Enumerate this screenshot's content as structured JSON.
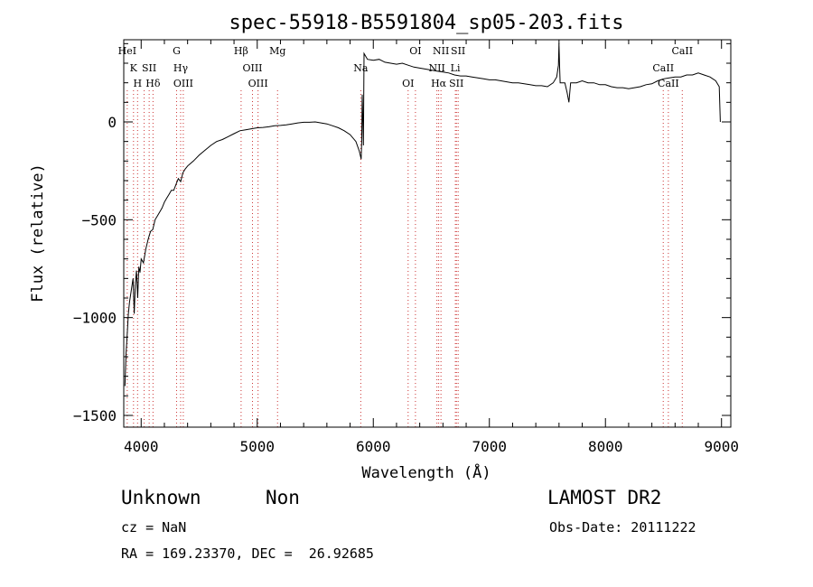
{
  "chart_data": {
    "type": "line",
    "title": "spec-55918-B5591804_sp05-203.fits",
    "xlabel": "Wavelength (Å)",
    "ylabel": "Flux (relative)",
    "xlim": [
      3850,
      9080
    ],
    "ylim": [
      -1560,
      420
    ],
    "xticks": [
      4000,
      5000,
      6000,
      7000,
      8000,
      9000
    ],
    "yticks": [
      0,
      -500,
      -1000,
      -1500
    ],
    "grid": false,
    "series": [
      {
        "values": [
          [
            3860,
            -1350
          ],
          [
            3870,
            -1180
          ],
          [
            3880,
            -1080
          ],
          [
            3890,
            -980
          ],
          [
            3900,
            -920
          ],
          [
            3910,
            -880
          ],
          [
            3920,
            -840
          ],
          [
            3930,
            -800
          ],
          [
            3940,
            -980
          ],
          [
            3950,
            -830
          ],
          [
            3960,
            -760
          ],
          [
            3970,
            -900
          ],
          [
            3980,
            -740
          ],
          [
            3990,
            -770
          ],
          [
            4000,
            -700
          ],
          [
            4020,
            -720
          ],
          [
            4040,
            -650
          ],
          [
            4060,
            -600
          ],
          [
            4080,
            -560
          ],
          [
            4100,
            -550
          ],
          [
            4120,
            -500
          ],
          [
            4140,
            -480
          ],
          [
            4160,
            -460
          ],
          [
            4180,
            -440
          ],
          [
            4200,
            -410
          ],
          [
            4220,
            -390
          ],
          [
            4240,
            -370
          ],
          [
            4260,
            -350
          ],
          [
            4280,
            -350
          ],
          [
            4300,
            -320
          ],
          [
            4320,
            -290
          ],
          [
            4340,
            -305
          ],
          [
            4360,
            -260
          ],
          [
            4380,
            -240
          ],
          [
            4400,
            -225
          ],
          [
            4420,
            -215
          ],
          [
            4450,
            -200
          ],
          [
            4500,
            -170
          ],
          [
            4550,
            -145
          ],
          [
            4600,
            -120
          ],
          [
            4650,
            -100
          ],
          [
            4700,
            -90
          ],
          [
            4750,
            -75
          ],
          [
            4800,
            -60
          ],
          [
            4850,
            -45
          ],
          [
            4900,
            -40
          ],
          [
            4950,
            -35
          ],
          [
            5000,
            -30
          ],
          [
            5050,
            -28
          ],
          [
            5100,
            -25
          ],
          [
            5150,
            -20
          ],
          [
            5200,
            -18
          ],
          [
            5250,
            -15
          ],
          [
            5300,
            -10
          ],
          [
            5350,
            -5
          ],
          [
            5400,
            -2
          ],
          [
            5450,
            -2
          ],
          [
            5500,
            0
          ],
          [
            5550,
            -5
          ],
          [
            5600,
            -10
          ],
          [
            5650,
            -20
          ],
          [
            5700,
            -30
          ],
          [
            5750,
            -45
          ],
          [
            5800,
            -65
          ],
          [
            5850,
            -100
          ],
          [
            5880,
            -150
          ],
          [
            5895,
            -190
          ],
          [
            5900,
            -100
          ],
          [
            5905,
            140
          ],
          [
            5910,
            0
          ],
          [
            5915,
            -120
          ],
          [
            5920,
            350
          ],
          [
            5950,
            320
          ],
          [
            6000,
            315
          ],
          [
            6050,
            320
          ],
          [
            6100,
            305
          ],
          [
            6150,
            300
          ],
          [
            6200,
            295
          ],
          [
            6250,
            300
          ],
          [
            6300,
            290
          ],
          [
            6350,
            280
          ],
          [
            6400,
            275
          ],
          [
            6450,
            270
          ],
          [
            6500,
            265
          ],
          [
            6550,
            260
          ],
          [
            6600,
            255
          ],
          [
            6650,
            250
          ],
          [
            6700,
            240
          ],
          [
            6750,
            235
          ],
          [
            6800,
            235
          ],
          [
            6850,
            230
          ],
          [
            6900,
            225
          ],
          [
            6950,
            220
          ],
          [
            7000,
            215
          ],
          [
            7050,
            215
          ],
          [
            7100,
            210
          ],
          [
            7150,
            205
          ],
          [
            7200,
            200
          ],
          [
            7250,
            200
          ],
          [
            7300,
            195
          ],
          [
            7350,
            190
          ],
          [
            7400,
            185
          ],
          [
            7450,
            185
          ],
          [
            7500,
            180
          ],
          [
            7550,
            200
          ],
          [
            7580,
            230
          ],
          [
            7595,
            290
          ],
          [
            7600,
            400
          ],
          [
            7605,
            280
          ],
          [
            7610,
            200
          ],
          [
            7650,
            200
          ],
          [
            7670,
            150
          ],
          [
            7685,
            100
          ],
          [
            7700,
            200
          ],
          [
            7750,
            200
          ],
          [
            7800,
            210
          ],
          [
            7850,
            200
          ],
          [
            7900,
            200
          ],
          [
            7950,
            190
          ],
          [
            8000,
            190
          ],
          [
            8050,
            180
          ],
          [
            8100,
            175
          ],
          [
            8150,
            175
          ],
          [
            8200,
            170
          ],
          [
            8250,
            175
          ],
          [
            8300,
            180
          ],
          [
            8350,
            190
          ],
          [
            8400,
            195
          ],
          [
            8450,
            210
          ],
          [
            8500,
            220
          ],
          [
            8550,
            225
          ],
          [
            8600,
            230
          ],
          [
            8650,
            230
          ],
          [
            8700,
            240
          ],
          [
            8750,
            240
          ],
          [
            8800,
            250
          ],
          [
            8850,
            240
          ],
          [
            8900,
            230
          ],
          [
            8950,
            210
          ],
          [
            8980,
            180
          ],
          [
            8990,
            0
          ]
        ]
      }
    ],
    "lines": [
      {
        "x": 3880,
        "labels": [
          "HeI"
        ]
      },
      {
        "x": 3934,
        "labels": [
          "K"
        ]
      },
      {
        "x": 3969,
        "labels": [
          "H"
        ]
      },
      {
        "x": 4026,
        "labels": []
      },
      {
        "x": 4069,
        "labels": [
          "SII"
        ]
      },
      {
        "x": 4102,
        "labels": [
          "Hδ"
        ]
      },
      {
        "x": 4305,
        "labels": [
          "G"
        ]
      },
      {
        "x": 4340,
        "labels": [
          "Hγ"
        ]
      },
      {
        "x": 4363,
        "labels": [
          "OIII"
        ]
      },
      {
        "x": 4861,
        "labels": [
          "Hβ"
        ]
      },
      {
        "x": 4959,
        "labels": [
          "OIII"
        ]
      },
      {
        "x": 5007,
        "labels": [
          "OIII"
        ]
      },
      {
        "x": 5175,
        "labels": [
          "Mg"
        ]
      },
      {
        "x": 5892,
        "labels": [
          "Na"
        ]
      },
      {
        "x": 6300,
        "labels": [
          "OI"
        ]
      },
      {
        "x": 6363,
        "labels": [
          "OI"
        ]
      },
      {
        "x": 6548,
        "labels": [
          "NII"
        ]
      },
      {
        "x": 6563,
        "labels": [
          "Hα"
        ]
      },
      {
        "x": 6583,
        "labels": [
          "NII"
        ]
      },
      {
        "x": 6707,
        "labels": [
          "Li"
        ]
      },
      {
        "x": 6716,
        "labels": [
          "SII"
        ]
      },
      {
        "x": 6731,
        "labels": [
          "SII"
        ]
      },
      {
        "x": 8498,
        "labels": [
          "CaII"
        ]
      },
      {
        "x": 8542,
        "labels": [
          "CaII"
        ]
      },
      {
        "x": 8662,
        "labels": [
          "CaII"
        ]
      }
    ]
  },
  "info": {
    "class": "Unknown",
    "subclass": "Non",
    "survey": "LAMOST DR2",
    "cz": "cz = NaN",
    "obs_date": "Obs-Date: 20111222",
    "coords": "RA = 169.23370, DEC =  26.92685"
  }
}
